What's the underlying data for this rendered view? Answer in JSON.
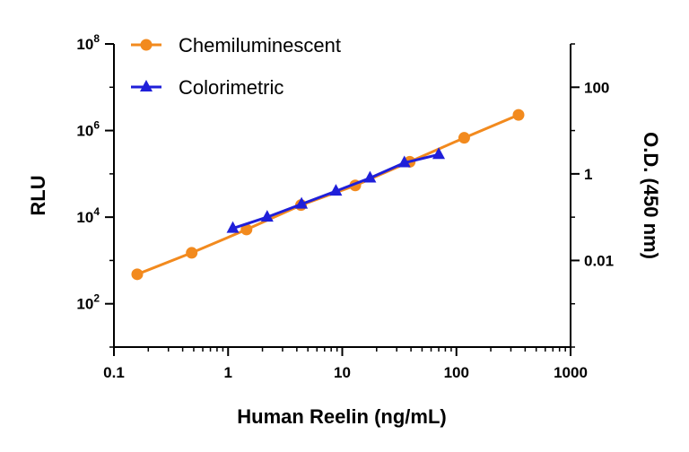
{
  "chart_data": {
    "type": "line",
    "xlabel": "Human Reelin (ng/mL)",
    "ylabel": "RLU",
    "y2label": "O.D. (450 nm)",
    "x_scale": "log",
    "y_scale": "log",
    "y2_scale": "log",
    "xlim": [
      0.1,
      1000
    ],
    "ylim": [
      10,
      100000000
    ],
    "y2lim": [
      0.0001,
      1000
    ],
    "x_ticks": [
      "0.1",
      "1",
      "10",
      "100",
      "1000"
    ],
    "y_ticks": [
      {
        "base": "10",
        "exp": "2",
        "value": 100
      },
      {
        "base": "10",
        "exp": "4",
        "value": 10000
      },
      {
        "base": "10",
        "exp": "6",
        "value": 1000000
      },
      {
        "base": "10",
        "exp": "8",
        "value": 100000000
      }
    ],
    "y2_ticks": [
      {
        "label": "0.01",
        "value": 0.01
      },
      {
        "label": "1",
        "value": 1
      },
      {
        "label": "100",
        "value": 100
      }
    ],
    "grid": false,
    "legend_position": "top-left",
    "series": [
      {
        "name": "Chemiluminescent",
        "axis": "left",
        "color": "#F28A1E",
        "marker": "circle",
        "x": [
          0.16,
          0.48,
          1.45,
          4.35,
          13,
          39,
          117,
          350
        ],
        "y": [
          480,
          1500,
          5200,
          19000,
          54000,
          190000,
          680000,
          2300000
        ]
      },
      {
        "name": "Colorimetric",
        "axis": "right",
        "color": "#1F1FD9",
        "marker": "triangle",
        "x": [
          1.1,
          2.2,
          4.4,
          8.8,
          17.5,
          35,
          70
        ],
        "y": [
          0.055,
          0.1,
          0.2,
          0.4,
          0.8,
          1.8,
          2.8
        ]
      }
    ]
  }
}
